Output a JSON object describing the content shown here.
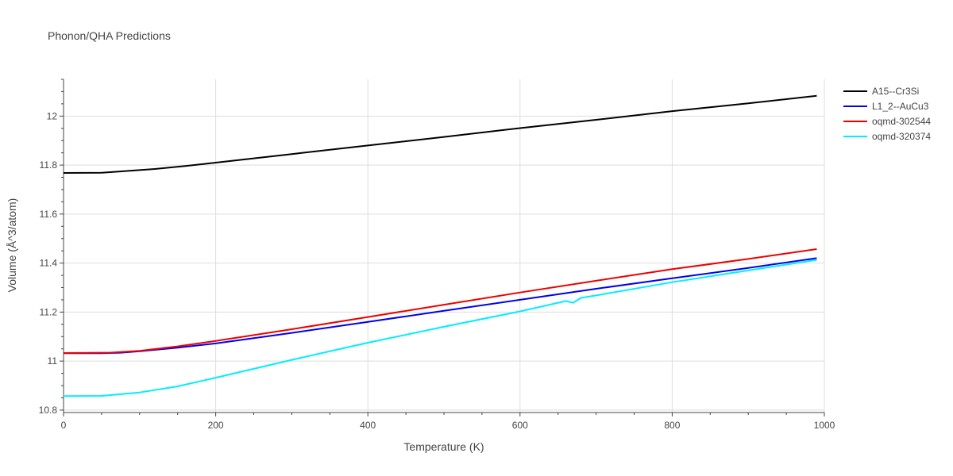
{
  "chart_data": {
    "type": "line",
    "title": "Phonon/QHA Predictions",
    "xlabel": "Temperature (K)",
    "ylabel": "Volume (Å^3/atom)",
    "xlim": [
      0,
      1000
    ],
    "ylim": [
      10.79,
      12.15
    ],
    "grid": true,
    "legend_position": "top-right",
    "x_ticks": [
      0,
      200,
      400,
      600,
      800,
      1000
    ],
    "x_tick_labels": [
      "0",
      "200",
      "400",
      "600",
      "800",
      "1000"
    ],
    "y_ticks": [
      10.8,
      11,
      11.2,
      11.4,
      11.6,
      11.8,
      12
    ],
    "y_tick_labels": [
      "10.8",
      "11",
      "11.2",
      "11.4",
      "11.6",
      "11.8",
      "12"
    ],
    "series": [
      {
        "name": "A15--Cr3Si",
        "color": "#000000",
        "points": [
          [
            0,
            11.768
          ],
          [
            50,
            11.769
          ],
          [
            80,
            11.775
          ],
          [
            120,
            11.784
          ],
          [
            160,
            11.796
          ],
          [
            200,
            11.81
          ],
          [
            300,
            11.845
          ],
          [
            400,
            11.88
          ],
          [
            500,
            11.915
          ],
          [
            600,
            11.951
          ],
          [
            700,
            11.985
          ],
          [
            800,
            12.02
          ],
          [
            900,
            12.052
          ],
          [
            990,
            12.083
          ]
        ]
      },
      {
        "name": "L1_2--AuCu3",
        "color": "#0000ee",
        "points": [
          [
            0,
            11.032
          ],
          [
            50,
            11.032
          ],
          [
            75,
            11.034
          ],
          [
            100,
            11.04
          ],
          [
            150,
            11.055
          ],
          [
            200,
            11.072
          ],
          [
            300,
            11.115
          ],
          [
            400,
            11.16
          ],
          [
            500,
            11.205
          ],
          [
            600,
            11.25
          ],
          [
            700,
            11.295
          ],
          [
            800,
            11.338
          ],
          [
            900,
            11.38
          ],
          [
            990,
            11.42
          ]
        ]
      },
      {
        "name": "oqmd-302544",
        "color": "#ee0000",
        "points": [
          [
            0,
            11.033
          ],
          [
            60,
            11.034
          ],
          [
            100,
            11.042
          ],
          [
            150,
            11.06
          ],
          [
            200,
            11.082
          ],
          [
            300,
            11.13
          ],
          [
            400,
            11.18
          ],
          [
            500,
            11.23
          ],
          [
            600,
            11.28
          ],
          [
            700,
            11.328
          ],
          [
            800,
            11.375
          ],
          [
            900,
            11.417
          ],
          [
            990,
            11.457
          ]
        ]
      },
      {
        "name": "oqmd-320374",
        "color": "#00eeff",
        "points": [
          [
            0,
            10.857
          ],
          [
            50,
            10.858
          ],
          [
            100,
            10.872
          ],
          [
            150,
            10.897
          ],
          [
            200,
            10.932
          ],
          [
            300,
            11.005
          ],
          [
            400,
            11.075
          ],
          [
            500,
            11.14
          ],
          [
            600,
            11.203
          ],
          [
            660,
            11.245
          ],
          [
            670,
            11.238
          ],
          [
            680,
            11.258
          ],
          [
            700,
            11.268
          ],
          [
            800,
            11.322
          ],
          [
            900,
            11.37
          ],
          [
            990,
            11.413
          ]
        ]
      }
    ]
  }
}
